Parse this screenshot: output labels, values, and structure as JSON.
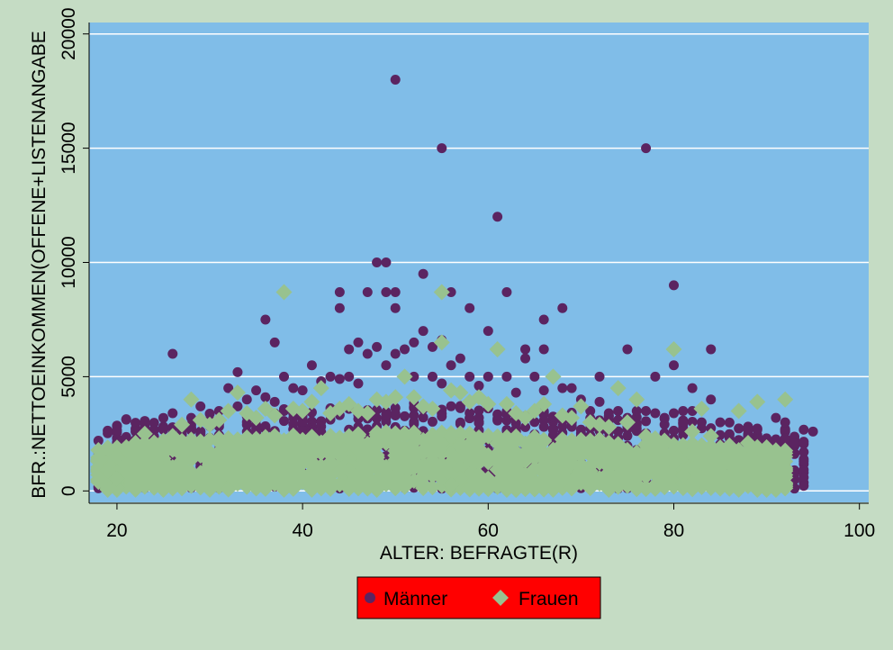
{
  "chart_data": {
    "type": "scatter",
    "xlabel": "ALTER: BEFRAGTE(R)",
    "ylabel": "BFR.:NETTOEINKOMMEN(OFFENE+LISTENANGABE",
    "xlim": [
      17,
      101
    ],
    "ylim": [
      -500,
      20500
    ],
    "x_ticks": [
      20,
      40,
      60,
      80,
      100
    ],
    "y_ticks": [
      0,
      5000,
      10000,
      15000,
      20000
    ],
    "grid": "horizontal",
    "legend_position": "bottom",
    "colors": {
      "background": "#c5dcc4",
      "plot_area": "#80bde8",
      "grid": "#ffffff",
      "legend_box": "#ff0000"
    },
    "series": [
      {
        "name": "Männer",
        "marker": "circle",
        "color": "#5b2461",
        "points": [
          [
            18,
            2200
          ],
          [
            18,
            1700
          ],
          [
            19,
            1400
          ],
          [
            20,
            1900
          ],
          [
            21,
            2000
          ],
          [
            22,
            2600
          ],
          [
            23,
            2400
          ],
          [
            24,
            2200
          ],
          [
            25,
            2700
          ],
          [
            26,
            3400
          ],
          [
            26,
            6000
          ],
          [
            27,
            2800
          ],
          [
            28,
            3200
          ],
          [
            29,
            3700
          ],
          [
            30,
            3100
          ],
          [
            31,
            3500
          ],
          [
            32,
            4500
          ],
          [
            33,
            5200
          ],
          [
            33,
            3700
          ],
          [
            34,
            4000
          ],
          [
            35,
            4400
          ],
          [
            36,
            7500
          ],
          [
            36,
            4100
          ],
          [
            37,
            6500
          ],
          [
            37,
            3900
          ],
          [
            38,
            5000
          ],
          [
            38,
            3500
          ],
          [
            39,
            4500
          ],
          [
            40,
            4400
          ],
          [
            41,
            5500
          ],
          [
            42,
            4800
          ],
          [
            43,
            5000
          ],
          [
            44,
            8700
          ],
          [
            44,
            8000
          ],
          [
            44,
            4900
          ],
          [
            45,
            6200
          ],
          [
            45,
            5000
          ],
          [
            46,
            6500
          ],
          [
            46,
            4700
          ],
          [
            47,
            8700
          ],
          [
            47,
            6000
          ],
          [
            48,
            10000
          ],
          [
            48,
            6300
          ],
          [
            49,
            10000
          ],
          [
            49,
            8700
          ],
          [
            49,
            5500
          ],
          [
            50,
            18000
          ],
          [
            50,
            8700
          ],
          [
            50,
            8000
          ],
          [
            50,
            6000
          ],
          [
            51,
            6200
          ],
          [
            52,
            6500
          ],
          [
            52,
            5000
          ],
          [
            53,
            9500
          ],
          [
            53,
            7000
          ],
          [
            54,
            6300
          ],
          [
            54,
            5000
          ],
          [
            55,
            15000
          ],
          [
            55,
            6600
          ],
          [
            55,
            4700
          ],
          [
            56,
            8700
          ],
          [
            56,
            5500
          ],
          [
            57,
            5800
          ],
          [
            58,
            8000
          ],
          [
            58,
            5000
          ],
          [
            59,
            4600
          ],
          [
            60,
            7000
          ],
          [
            60,
            5000
          ],
          [
            61,
            12000
          ],
          [
            61,
            6200
          ],
          [
            62,
            8700
          ],
          [
            62,
            5000
          ],
          [
            63,
            4300
          ],
          [
            64,
            6200
          ],
          [
            64,
            5800
          ],
          [
            65,
            5000
          ],
          [
            66,
            7500
          ],
          [
            66,
            6200
          ],
          [
            66,
            4400
          ],
          [
            67,
            5000
          ],
          [
            68,
            8000
          ],
          [
            68,
            4500
          ],
          [
            69,
            4500
          ],
          [
            70,
            4000
          ],
          [
            71,
            3500
          ],
          [
            72,
            5000
          ],
          [
            72,
            3900
          ],
          [
            73,
            3400
          ],
          [
            74,
            3500
          ],
          [
            75,
            6200
          ],
          [
            75,
            3200
          ],
          [
            76,
            3500
          ],
          [
            77,
            15000
          ],
          [
            77,
            3500
          ],
          [
            78,
            5000
          ],
          [
            78,
            3400
          ],
          [
            79,
            3200
          ],
          [
            80,
            9000
          ],
          [
            80,
            5500
          ],
          [
            80,
            3400
          ],
          [
            81,
            3500
          ],
          [
            82,
            4500
          ],
          [
            82,
            3500
          ],
          [
            83,
            3000
          ],
          [
            84,
            6200
          ],
          [
            84,
            4000
          ],
          [
            85,
            3000
          ],
          [
            86,
            2000
          ],
          [
            87,
            1700
          ],
          [
            88,
            2300
          ],
          [
            89,
            1800
          ],
          [
            90,
            2300
          ],
          [
            91,
            3200
          ],
          [
            92,
            3000
          ],
          [
            92,
            2300
          ],
          [
            94,
            1700
          ],
          [
            94,
            1300
          ],
          [
            95,
            2600
          ]
        ]
      },
      {
        "name": "Frauen",
        "marker": "diamond",
        "color": "#98c28f",
        "points": [
          [
            18,
            700
          ],
          [
            19,
            900
          ],
          [
            20,
            1500
          ],
          [
            21,
            1800
          ],
          [
            22,
            2100
          ],
          [
            23,
            2500
          ],
          [
            24,
            2000
          ],
          [
            25,
            2200
          ],
          [
            26,
            2400
          ],
          [
            27,
            2900
          ],
          [
            28,
            4000
          ],
          [
            29,
            3100
          ],
          [
            30,
            2900
          ],
          [
            31,
            3100
          ],
          [
            32,
            3500
          ],
          [
            33,
            4300
          ],
          [
            34,
            3400
          ],
          [
            35,
            3200
          ],
          [
            36,
            3600
          ],
          [
            37,
            3300
          ],
          [
            38,
            8700
          ],
          [
            39,
            3600
          ],
          [
            40,
            3500
          ],
          [
            41,
            3900
          ],
          [
            42,
            4500
          ],
          [
            43,
            3400
          ],
          [
            44,
            3600
          ],
          [
            45,
            3800
          ],
          [
            46,
            3500
          ],
          [
            47,
            3400
          ],
          [
            48,
            4000
          ],
          [
            49,
            3900
          ],
          [
            50,
            4100
          ],
          [
            51,
            5000
          ],
          [
            52,
            4100
          ],
          [
            53,
            3700
          ],
          [
            54,
            3600
          ],
          [
            55,
            8700
          ],
          [
            55,
            6500
          ],
          [
            56,
            4400
          ],
          [
            57,
            4300
          ],
          [
            58,
            3900
          ],
          [
            59,
            4100
          ],
          [
            60,
            3800
          ],
          [
            61,
            6200
          ],
          [
            62,
            3800
          ],
          [
            63,
            3400
          ],
          [
            64,
            3200
          ],
          [
            65,
            3500
          ],
          [
            66,
            3800
          ],
          [
            67,
            5000
          ],
          [
            68,
            3300
          ],
          [
            69,
            3200
          ],
          [
            70,
            3700
          ],
          [
            71,
            3000
          ],
          [
            72,
            2900
          ],
          [
            73,
            2800
          ],
          [
            74,
            4500
          ],
          [
            75,
            3000
          ],
          [
            76,
            4000
          ],
          [
            77,
            2400
          ],
          [
            78,
            2300
          ],
          [
            79,
            2200
          ],
          [
            80,
            6200
          ],
          [
            81,
            2000
          ],
          [
            82,
            2600
          ],
          [
            83,
            3600
          ],
          [
            84,
            2400
          ],
          [
            85,
            1900
          ],
          [
            86,
            1700
          ],
          [
            87,
            3500
          ],
          [
            88,
            2100
          ],
          [
            89,
            3900
          ],
          [
            90,
            1500
          ],
          [
            92,
            4000
          ],
          [
            92,
            1000
          ],
          [
            92,
            700
          ]
        ]
      }
    ]
  }
}
